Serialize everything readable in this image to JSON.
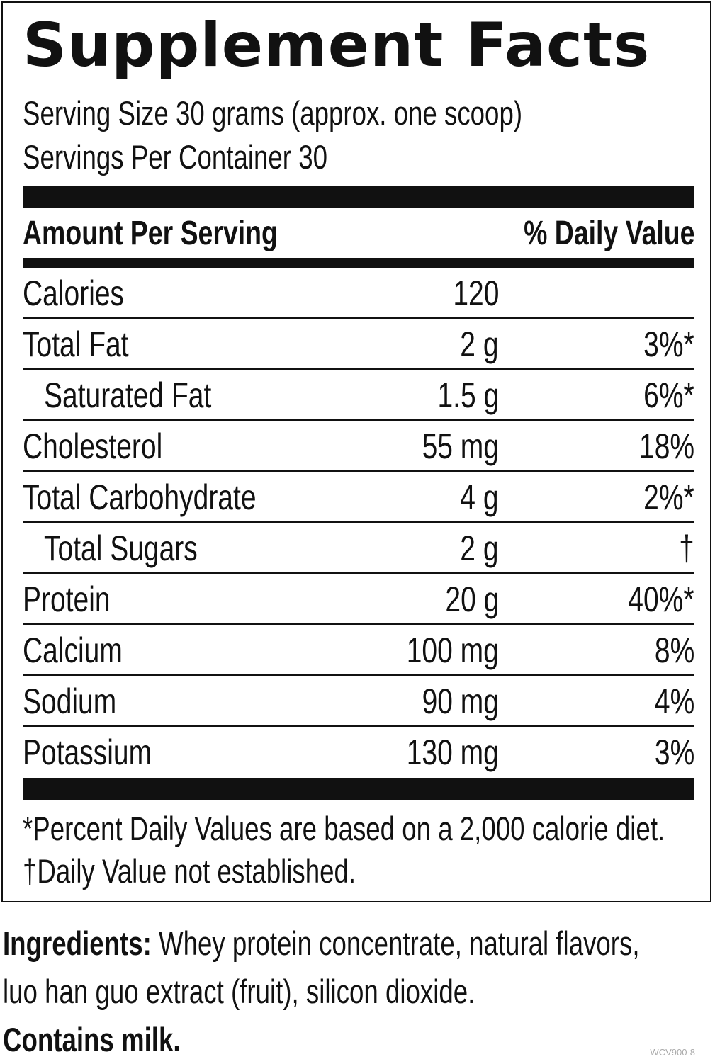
{
  "title": "Supplement Facts",
  "serving_size": "Serving Size 30 grams (approx. one scoop)",
  "servings_per_container": "Servings Per Container 30",
  "header": {
    "amount_per_serving": "Amount Per Serving",
    "daily_value": "% Daily Value"
  },
  "nutrients": [
    {
      "name": "Calories",
      "amount": "120",
      "dv": ""
    },
    {
      "name": "Total Fat",
      "amount": "2 g",
      "dv": "3%*"
    },
    {
      "name": "Saturated Fat",
      "amount": "1.5 g",
      "dv": "6%*"
    },
    {
      "name": "Cholesterol",
      "amount": "55 mg",
      "dv": "18%"
    },
    {
      "name": "Total Carbohydrate",
      "amount": "4 g",
      "dv": "2%*"
    },
    {
      "name": "Total Sugars",
      "amount": "2 g",
      "dv": "†"
    },
    {
      "name": "Protein",
      "amount": "20 g",
      "dv": "40%*"
    },
    {
      "name": "Calcium",
      "amount": "100 mg",
      "dv": "8%"
    },
    {
      "name": "Sodium",
      "amount": "90 mg",
      "dv": "4%"
    },
    {
      "name": "Potassium",
      "amount": "130 mg",
      "dv": "3%"
    }
  ],
  "footnotes": {
    "percent_dv": "*Percent Daily Values are based on a 2,000 calorie diet.",
    "not_established": "†Daily Value not established."
  },
  "ingredients": {
    "label": "Ingredients:",
    "line1": " Whey protein concentrate, natural flavors,",
    "line2": "luo han guo extract (fruit), silicon dioxide.",
    "allergen": "Contains milk."
  },
  "product_code": "WCV900-8"
}
